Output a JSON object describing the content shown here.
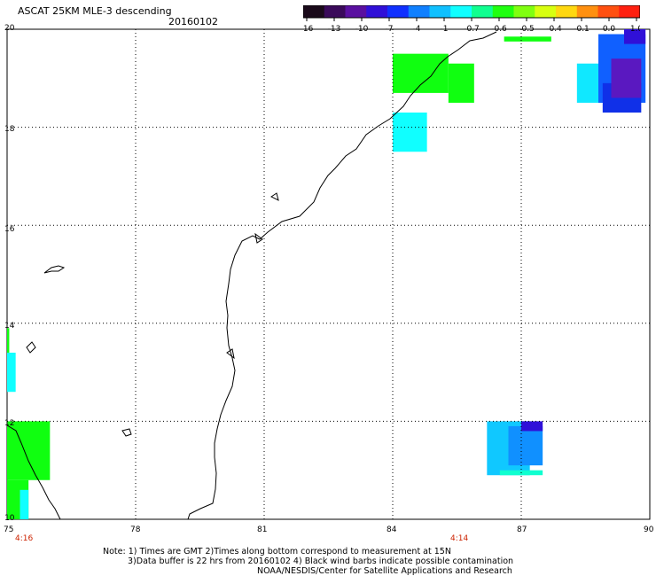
{
  "header": {
    "title": "ASCAT 25KM MLE-3 descending",
    "date": "20160102"
  },
  "colorbar": {
    "labels": [
      "-16",
      "-13",
      "-10",
      "-7",
      "-4",
      "-1",
      "-0.7",
      "-0.6",
      "-0.5",
      "-0.4",
      "-0.1",
      "0.0",
      "1.0"
    ],
    "colors": [
      "#1a0a1a",
      "#3a0a5a",
      "#5a10a0",
      "#3010d8",
      "#1030ff",
      "#1080ff",
      "#10c0ff",
      "#10ffff",
      "#10ff90",
      "#20ff10",
      "#80ff10",
      "#d8ff10",
      "#ffd810",
      "#ff9010",
      "#ff5010",
      "#ff2010"
    ]
  },
  "axes": {
    "latitudes": [
      "20",
      "18",
      "16",
      "14",
      "12",
      "10"
    ],
    "longitudes": [
      "75",
      "78",
      "81",
      "84",
      "87",
      "90"
    ],
    "times": [
      {
        "label": "4:16",
        "lon": "75"
      },
      {
        "label": "4:14",
        "lon": "85.5"
      }
    ]
  },
  "notes": {
    "line1": "Note: 1) Times are GMT 2)Times along bottom correspond to measurement at 15N",
    "line2": "3)Data buffer is 22 hrs from 20160102 4) Black wind barbs indicate possible contamination",
    "line3": "NOAA/NESDIS/Center for Satellite Applications and Research"
  },
  "map": {
    "lat_range": [
      10,
      20
    ],
    "lon_range": [
      75,
      90
    ],
    "cells": [
      {
        "lon0": 84.0,
        "lon1": 85.3,
        "lat0": 18.7,
        "lat1": 19.5,
        "color": "#10ff10"
      },
      {
        "lon0": 85.3,
        "lon1": 85.9,
        "lat0": 18.5,
        "lat1": 19.3,
        "color": "#10ff10"
      },
      {
        "lon0": 84.0,
        "lon1": 84.8,
        "lat0": 17.5,
        "lat1": 18.3,
        "color": "#10ffff"
      },
      {
        "lon0": 86.6,
        "lon1": 87.7,
        "lat0": 19.75,
        "lat1": 19.85,
        "color": "#10ff10"
      },
      {
        "lon0": 88.3,
        "lon1": 89.0,
        "lat0": 18.5,
        "lat1": 19.3,
        "color": "#10e8ff"
      },
      {
        "lon0": 88.8,
        "lon1": 89.9,
        "lat0": 18.5,
        "lat1": 19.9,
        "color": "#1060ff"
      },
      {
        "lon0": 88.9,
        "lon1": 89.8,
        "lat0": 18.3,
        "lat1": 18.9,
        "color": "#1030e8"
      },
      {
        "lon0": 89.4,
        "lon1": 89.9,
        "lat0": 19.7,
        "lat1": 20.0,
        "color": "#3010d8"
      },
      {
        "lon0": 89.1,
        "lon1": 89.8,
        "lat0": 18.6,
        "lat1": 19.4,
        "color": "#5a18c0"
      },
      {
        "lon0": 75.0,
        "lon1": 75.2,
        "lat0": 12.6,
        "lat1": 13.4,
        "color": "#10ffff"
      },
      {
        "lon0": 75.0,
        "lon1": 75.05,
        "lat0": 13.4,
        "lat1": 13.9,
        "color": "#10ff10"
      },
      {
        "lon0": 75.0,
        "lon1": 76.0,
        "lat0": 10.8,
        "lat1": 12.0,
        "color": "#10ff10"
      },
      {
        "lon0": 75.0,
        "lon1": 75.5,
        "lat0": 10.0,
        "lat1": 10.8,
        "color": "#10ff10"
      },
      {
        "lon0": 75.3,
        "lon1": 75.5,
        "lat0": 10.0,
        "lat1": 10.6,
        "color": "#10ffff"
      },
      {
        "lon0": 86.2,
        "lon1": 87.2,
        "lat0": 10.9,
        "lat1": 12.0,
        "color": "#10c8ff"
      },
      {
        "lon0": 86.7,
        "lon1": 87.5,
        "lat0": 11.1,
        "lat1": 11.9,
        "color": "#1090ff"
      },
      {
        "lon0": 86.5,
        "lon1": 87.5,
        "lat0": 10.9,
        "lat1": 11.0,
        "color": "#10ffd0"
      },
      {
        "lon0": 87.0,
        "lon1": 87.5,
        "lat0": 11.8,
        "lat1": 12.0,
        "color": "#3010d8"
      }
    ]
  }
}
